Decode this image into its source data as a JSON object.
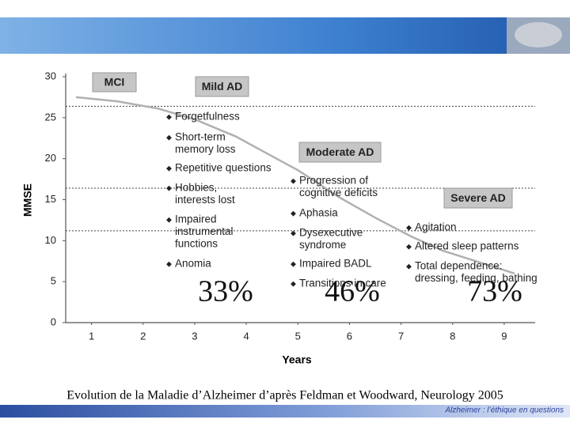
{
  "chart_data": {
    "type": "line",
    "x_label": "Years",
    "y_label": "MMSE",
    "x": [
      0.7,
      1.5,
      2.3,
      3,
      3.8,
      4.5,
      5,
      5.8,
      6.5,
      7.2,
      7.8,
      8.5,
      9.2
    ],
    "values": [
      27.5,
      27,
      26.1,
      24.8,
      22.7,
      20.3,
      18.6,
      15.3,
      12.8,
      10.5,
      8.8,
      7.4,
      6.0
    ],
    "color": "#b0b0b0",
    "xlim": [
      0.5,
      9.6
    ],
    "xticks": [
      1,
      2,
      3,
      4,
      5,
      6,
      7,
      8,
      9
    ],
    "ylim": [
      0,
      30
    ],
    "yticks": [
      0,
      5,
      10,
      15,
      20,
      25,
      30
    ],
    "reference_lines": [
      26.4,
      16.4,
      11.2
    ],
    "stages": [
      "MCI",
      "Mild AD",
      "Moderate AD",
      "Severe AD"
    ],
    "symptoms": [
      [
        [
          "Forgetfulness"
        ],
        [
          "Short-term",
          "memory loss"
        ],
        [
          "Repetitive questions"
        ],
        [
          "Hobbies,",
          "interests lost"
        ],
        [
          "Impaired",
          "instrumental",
          "functions"
        ],
        [
          "Anomia"
        ]
      ],
      [
        [
          "Progression of",
          "cognitive deficits"
        ],
        [
          "Aphasia"
        ],
        [
          "Dysexecutive",
          "syndrome"
        ],
        [
          "Impaired BADL"
        ],
        [
          "Transitions in care"
        ]
      ],
      [
        [
          "Agitation"
        ],
        [
          "Altered sleep patterns"
        ],
        [
          "Total dependence:",
          "dressing, feeding, bathing"
        ]
      ]
    ],
    "percentages": [
      "33%",
      "46%",
      "73%"
    ]
  },
  "caption": "Evolution de la Maladie d’Alzheimer d’après Feldman et Woodward, Neurology 2005",
  "footer": "Alzheimer : l’éthique en questions"
}
